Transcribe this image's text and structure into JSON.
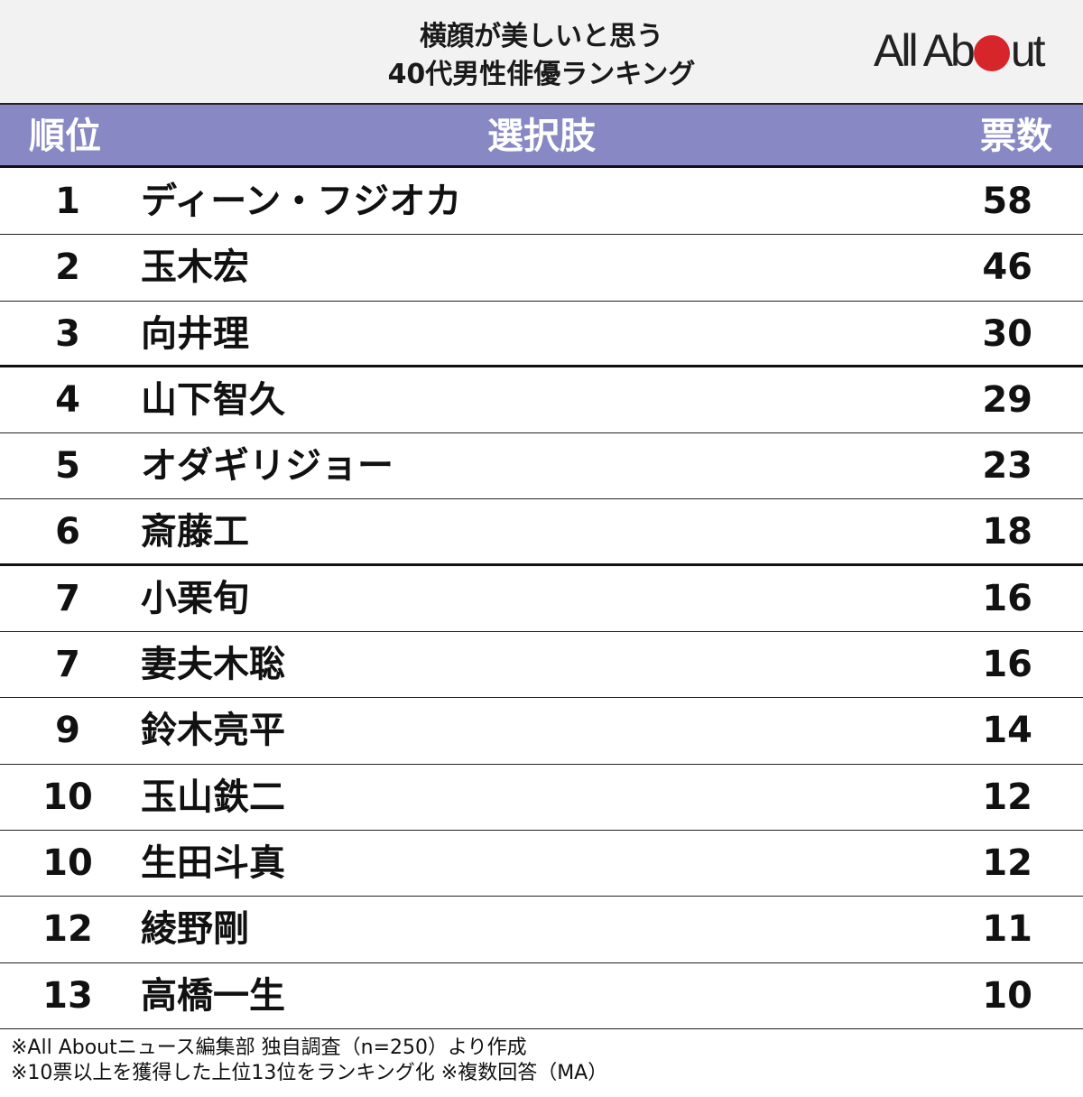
{
  "title": {
    "line1": "横顔が美しいと思う",
    "line2": "40代男性俳優ランキング"
  },
  "logo": {
    "before": "All Ab",
    "after": "ut",
    "dot_color": "#d7262b"
  },
  "header": {
    "rank": "順位",
    "choice": "選択肢",
    "votes": "票数",
    "bg_color": "#8888c4"
  },
  "rows": [
    {
      "rank": "1",
      "name": "ディーン・フジオカ",
      "votes": "58"
    },
    {
      "rank": "2",
      "name": "玉木宏",
      "votes": "46"
    },
    {
      "rank": "3",
      "name": "向井理",
      "votes": "30"
    },
    {
      "rank": "4",
      "name": "山下智久",
      "votes": "29"
    },
    {
      "rank": "5",
      "name": "オダギリジョー",
      "votes": "23"
    },
    {
      "rank": "6",
      "name": "斎藤工",
      "votes": "18"
    },
    {
      "rank": "7",
      "name": "小栗旬",
      "votes": "16"
    },
    {
      "rank": "7",
      "name": "妻夫木聡",
      "votes": "16"
    },
    {
      "rank": "9",
      "name": "鈴木亮平",
      "votes": "14"
    },
    {
      "rank": "10",
      "name": "玉山鉄二",
      "votes": "12"
    },
    {
      "rank": "10",
      "name": "生田斗真",
      "votes": "12"
    },
    {
      "rank": "12",
      "name": "綾野剛",
      "votes": "11"
    },
    {
      "rank": "13",
      "name": "高橋一生",
      "votes": "10"
    }
  ],
  "notes": {
    "line1": "※All Aboutニュース編集部 独自調査（n=250）より作成",
    "line2": "※10票以上を獲得した上位13位をランキング化 ※複数回答（MA）"
  },
  "chart_data": {
    "type": "table",
    "title": "横顔が美しいと思う40代男性俳優ランキング",
    "columns": [
      "順位",
      "選択肢",
      "票数"
    ],
    "categories": [
      "ディーン・フジオカ",
      "玉木宏",
      "向井理",
      "山下智久",
      "オダギリジョー",
      "斎藤工",
      "小栗旬",
      "妻夫木聡",
      "鈴木亮平",
      "玉山鉄二",
      "生田斗真",
      "綾野剛",
      "高橋一生"
    ],
    "ranks": [
      1,
      2,
      3,
      4,
      5,
      6,
      7,
      7,
      9,
      10,
      10,
      12,
      13
    ],
    "values": [
      58,
      46,
      30,
      29,
      23,
      18,
      16,
      16,
      14,
      12,
      12,
      11,
      10
    ],
    "n": 250
  }
}
